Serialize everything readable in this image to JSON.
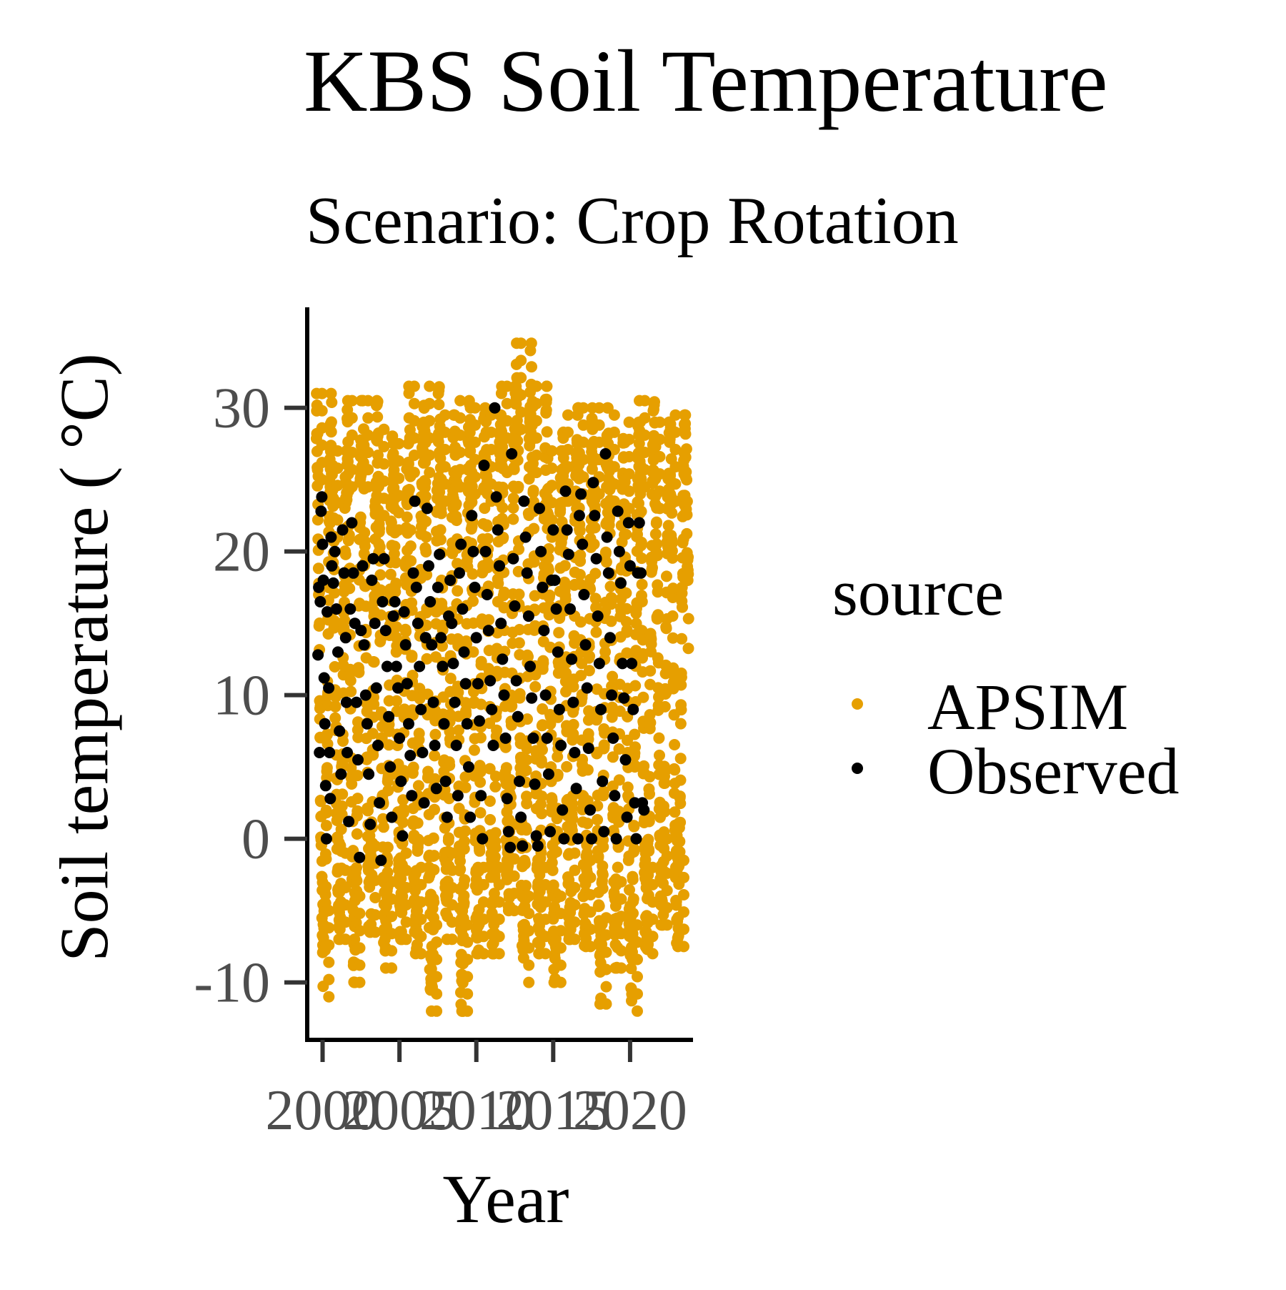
{
  "chart_data": {
    "type": "scatter",
    "title": "KBS Soil Temperature",
    "subtitle": "Scenario: Crop Rotation",
    "xlabel": "Year",
    "ylabel": "Soil temperature ( °C)",
    "xlim": [
      1999,
      2024
    ],
    "ylim": [
      -14,
      37
    ],
    "x_ticks": [
      2000,
      2005,
      2010,
      2015,
      2020
    ],
    "y_ticks": [
      -10,
      0,
      10,
      20,
      30
    ],
    "grid": false,
    "legend": {
      "title": "source",
      "position": "right",
      "entries": [
        {
          "label": "APSIM",
          "color": "#E69F00"
        },
        {
          "label": "Observed",
          "color": "#000000"
        }
      ]
    },
    "series": [
      {
        "name": "APSIM",
        "color": "#E69F00",
        "description": "daily simulated soil temperature, seasonal cycle from ~-11 to ~34 °C, 1999.6–2023.8",
        "date_range": [
          1999.6,
          2023.8
        ],
        "seasonal_min": [
          -11.0,
          -7.0,
          -10.0,
          -6.5,
          -9.0,
          -7.0,
          -8.0,
          -12.0,
          -7.0,
          -12.0,
          -8.0,
          -8.0,
          -5.0,
          -10.0,
          -8.0,
          -10.0,
          -7.0,
          -7.5,
          -11.5,
          -9.0,
          -12.0,
          -8.0,
          -6.0,
          -7.5
        ],
        "seasonal_max": [
          31.0,
          27.0,
          30.5,
          30.5,
          28.5,
          27.5,
          31.5,
          31.5,
          29.5,
          30.5,
          30.0,
          29.5,
          31.5,
          34.5,
          31.5,
          27.0,
          29.5,
          30.0,
          30.0,
          29.5,
          29.0,
          30.5,
          29.0,
          29.5
        ]
      },
      {
        "name": "Observed",
        "color": "#000000",
        "points": [
          [
            1999.7,
            12.8
          ],
          [
            1999.75,
            17.5
          ],
          [
            1999.8,
            6.0
          ],
          [
            1999.85,
            16.5
          ],
          [
            1999.9,
            22.8
          ],
          [
            1999.95,
            23.8
          ],
          [
            2000.0,
            20.5
          ],
          [
            2000.05,
            18.0
          ],
          [
            2000.1,
            11.2
          ],
          [
            2000.15,
            8.0
          ],
          [
            2000.2,
            3.7
          ],
          [
            2000.25,
            0.0
          ],
          [
            2000.3,
            15.8
          ],
          [
            2000.4,
            10.5
          ],
          [
            2000.45,
            6.0
          ],
          [
            2000.5,
            2.8
          ],
          [
            2000.55,
            21.0
          ],
          [
            2000.6,
            19.0
          ],
          [
            2000.7,
            17.8
          ],
          [
            2000.8,
            20.0
          ],
          [
            2000.9,
            16.0
          ],
          [
            2001.0,
            13.0
          ],
          [
            2001.1,
            7.5
          ],
          [
            2001.2,
            4.5
          ],
          [
            2001.3,
            21.5
          ],
          [
            2001.4,
            18.5
          ],
          [
            2001.5,
            14.0
          ],
          [
            2001.55,
            9.5
          ],
          [
            2001.6,
            6.0
          ],
          [
            2001.7,
            1.2
          ],
          [
            2001.8,
            16.0
          ],
          [
            2001.9,
            22.0
          ],
          [
            2002.0,
            18.5
          ],
          [
            2002.1,
            15.0
          ],
          [
            2002.2,
            9.5
          ],
          [
            2002.3,
            5.5
          ],
          [
            2002.4,
            -1.3
          ],
          [
            2002.5,
            14.5
          ],
          [
            2002.6,
            19.0
          ],
          [
            2002.7,
            13.5
          ],
          [
            2002.8,
            10.0
          ],
          [
            2002.9,
            8.0
          ],
          [
            2003.0,
            4.5
          ],
          [
            2003.1,
            1.0
          ],
          [
            2003.2,
            18.0
          ],
          [
            2003.3,
            19.5
          ],
          [
            2003.4,
            15.0
          ],
          [
            2003.5,
            10.5
          ],
          [
            2003.6,
            6.5
          ],
          [
            2003.7,
            2.5
          ],
          [
            2003.8,
            -1.5
          ],
          [
            2003.9,
            16.5
          ],
          [
            2004.0,
            19.5
          ],
          [
            2004.1,
            14.5
          ],
          [
            2004.2,
            12.0
          ],
          [
            2004.3,
            8.5
          ],
          [
            2004.4,
            5.0
          ],
          [
            2004.5,
            1.5
          ],
          [
            2004.6,
            15.5
          ],
          [
            2004.7,
            16.5
          ],
          [
            2004.8,
            12.0
          ],
          [
            2004.9,
            10.5
          ],
          [
            2005.0,
            7.0
          ],
          [
            2005.1,
            4.0
          ],
          [
            2005.2,
            0.2
          ],
          [
            2005.3,
            15.8
          ],
          [
            2005.4,
            13.5
          ],
          [
            2005.5,
            10.8
          ],
          [
            2005.6,
            8.0
          ],
          [
            2005.7,
            5.8
          ],
          [
            2005.8,
            3.0
          ],
          [
            2005.9,
            18.5
          ],
          [
            2006.0,
            23.5
          ],
          [
            2006.1,
            17.5
          ],
          [
            2006.2,
            15.0
          ],
          [
            2006.3,
            12.0
          ],
          [
            2006.4,
            9.0
          ],
          [
            2006.5,
            6.0
          ],
          [
            2006.6,
            2.5
          ],
          [
            2006.7,
            14.0
          ],
          [
            2006.8,
            23.0
          ],
          [
            2006.9,
            19.0
          ],
          [
            2007.0,
            16.5
          ],
          [
            2007.1,
            13.5
          ],
          [
            2007.2,
            9.5
          ],
          [
            2007.3,
            6.5
          ],
          [
            2007.4,
            3.5
          ],
          [
            2007.5,
            17.5
          ],
          [
            2007.6,
            19.8
          ],
          [
            2007.7,
            14.0
          ],
          [
            2007.8,
            12.0
          ],
          [
            2007.9,
            8.0
          ],
          [
            2008.0,
            4.0
          ],
          [
            2008.1,
            1.5
          ],
          [
            2008.2,
            15.5
          ],
          [
            2008.3,
            18.0
          ],
          [
            2008.4,
            15.0
          ],
          [
            2008.5,
            12.2
          ],
          [
            2008.6,
            9.5
          ],
          [
            2008.7,
            6.5
          ],
          [
            2008.8,
            3.0
          ],
          [
            2008.9,
            18.5
          ],
          [
            2009.0,
            20.5
          ],
          [
            2009.1,
            16.0
          ],
          [
            2009.2,
            13.0
          ],
          [
            2009.3,
            10.8
          ],
          [
            2009.4,
            8.0
          ],
          [
            2009.5,
            5.0
          ],
          [
            2009.6,
            1.5
          ],
          [
            2009.7,
            22.5
          ],
          [
            2009.8,
            20.0
          ],
          [
            2009.9,
            17.5
          ],
          [
            2010.0,
            14.0
          ],
          [
            2010.1,
            10.8
          ],
          [
            2010.2,
            8.2
          ],
          [
            2010.3,
            3.0
          ],
          [
            2010.4,
            0.0
          ],
          [
            2010.5,
            26.0
          ],
          [
            2010.6,
            20.0
          ],
          [
            2010.7,
            17.0
          ],
          [
            2010.8,
            14.5
          ],
          [
            2010.9,
            11.0
          ],
          [
            2011.0,
            9.0
          ],
          [
            2011.1,
            6.5
          ],
          [
            2011.2,
            30.0
          ],
          [
            2011.3,
            23.8
          ],
          [
            2011.4,
            21.5
          ],
          [
            2011.5,
            19.0
          ],
          [
            2011.6,
            15.0
          ],
          [
            2011.7,
            12.5
          ],
          [
            2011.8,
            10.0
          ],
          [
            2011.9,
            7.0
          ],
          [
            2012.0,
            2.8
          ],
          [
            2012.1,
            0.5
          ],
          [
            2012.2,
            -0.6
          ],
          [
            2012.3,
            26.8
          ],
          [
            2012.4,
            19.5
          ],
          [
            2012.5,
            16.2
          ],
          [
            2012.6,
            11.0
          ],
          [
            2012.7,
            8.5
          ],
          [
            2012.8,
            4.0
          ],
          [
            2012.9,
            1.5
          ],
          [
            2013.0,
            -0.5
          ],
          [
            2013.1,
            23.5
          ],
          [
            2013.2,
            21.0
          ],
          [
            2013.3,
            18.5
          ],
          [
            2013.4,
            15.5
          ],
          [
            2013.5,
            12.0
          ],
          [
            2013.6,
            9.8
          ],
          [
            2013.7,
            7.0
          ],
          [
            2013.8,
            3.8
          ],
          [
            2013.9,
            0.2
          ],
          [
            2014.0,
            -0.5
          ],
          [
            2014.1,
            23.0
          ],
          [
            2014.2,
            20.0
          ],
          [
            2014.3,
            17.5
          ],
          [
            2014.4,
            14.5
          ],
          [
            2014.5,
            10.0
          ],
          [
            2014.6,
            7.0
          ],
          [
            2014.7,
            4.5
          ],
          [
            2014.8,
            0.5
          ],
          [
            2014.9,
            18.0
          ],
          [
            2015.0,
            21.5
          ],
          [
            2015.1,
            18.0
          ],
          [
            2015.2,
            16.0
          ],
          [
            2015.3,
            13.0
          ],
          [
            2015.4,
            9.0
          ],
          [
            2015.5,
            6.5
          ],
          [
            2015.6,
            2.0
          ],
          [
            2015.7,
            0.0
          ],
          [
            2015.8,
            24.2
          ],
          [
            2015.9,
            21.5
          ],
          [
            2016.0,
            19.8
          ],
          [
            2016.1,
            16.0
          ],
          [
            2016.2,
            12.5
          ],
          [
            2016.3,
            9.5
          ],
          [
            2016.4,
            6.0
          ],
          [
            2016.5,
            3.5
          ],
          [
            2016.6,
            0.0
          ],
          [
            2016.7,
            22.5
          ],
          [
            2016.8,
            24.0
          ],
          [
            2016.9,
            20.5
          ],
          [
            2017.0,
            17.0
          ],
          [
            2017.1,
            13.5
          ],
          [
            2017.2,
            10.5
          ],
          [
            2017.3,
            6.3
          ],
          [
            2017.4,
            2.0
          ],
          [
            2017.5,
            0.0
          ],
          [
            2017.6,
            24.8
          ],
          [
            2017.7,
            22.5
          ],
          [
            2017.8,
            19.5
          ],
          [
            2017.9,
            15.5
          ],
          [
            2018.0,
            12.2
          ],
          [
            2018.1,
            9.0
          ],
          [
            2018.2,
            4.0
          ],
          [
            2018.3,
            0.5
          ],
          [
            2018.4,
            26.8
          ],
          [
            2018.5,
            21.0
          ],
          [
            2018.6,
            18.5
          ],
          [
            2018.7,
            14.0
          ],
          [
            2018.8,
            10.0
          ],
          [
            2018.9,
            7.0
          ],
          [
            2019.0,
            3.0
          ],
          [
            2019.1,
            0.0
          ],
          [
            2019.2,
            22.8
          ],
          [
            2019.3,
            20.0
          ],
          [
            2019.4,
            17.8
          ],
          [
            2019.5,
            12.2
          ],
          [
            2019.6,
            9.8
          ],
          [
            2019.7,
            5.5
          ],
          [
            2019.8,
            1.5
          ],
          [
            2019.9,
            22.0
          ],
          [
            2020.0,
            19.0
          ],
          [
            2020.1,
            12.2
          ],
          [
            2020.2,
            9.0
          ],
          [
            2020.3,
            2.5
          ],
          [
            2020.4,
            0.0
          ],
          [
            2020.5,
            18.5
          ],
          [
            2020.6,
            22.0
          ],
          [
            2020.7,
            18.5
          ],
          [
            2020.8,
            2.5
          ],
          [
            2020.9,
            2.0
          ]
        ]
      }
    ]
  }
}
